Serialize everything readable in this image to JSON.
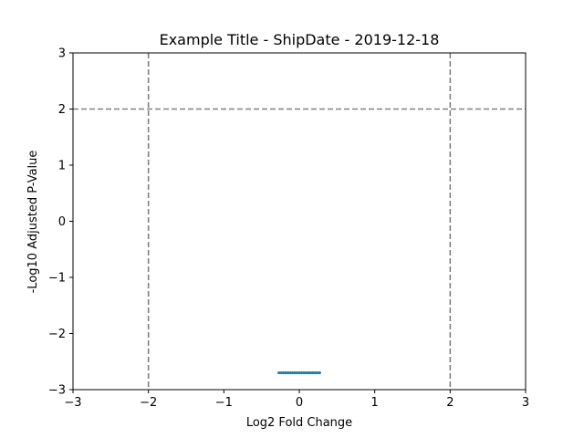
{
  "chart_data": {
    "type": "scatter",
    "title": "Example Title - ShipDate - 2019-12-18",
    "xlabel": "Log2 Fold Change",
    "ylabel": "-Log10 Adjusted P-Value",
    "xlim": [
      -3,
      3
    ],
    "ylim": [
      -3,
      3
    ],
    "xticks": [
      -3,
      -2,
      -1,
      0,
      1,
      2,
      3
    ],
    "yticks": [
      -3,
      -2,
      -1,
      0,
      1,
      2,
      3
    ],
    "xtick_labels": [
      "−3",
      "−2",
      "−1",
      "0",
      "1",
      "2",
      "3"
    ],
    "ytick_labels": [
      "−3",
      "−2",
      "−1",
      "0",
      "1",
      "2",
      "3"
    ],
    "grid": false,
    "threshold_lines": {
      "vertical": [
        -2,
        2
      ],
      "horizontal": [
        2
      ],
      "color": "#808080",
      "style": "dashed"
    },
    "series": [
      {
        "color": "#1f77b4",
        "points": [
          {
            "x": -0.27,
            "y": -2.7
          },
          {
            "x": -0.24,
            "y": -2.7
          },
          {
            "x": -0.21,
            "y": -2.7
          },
          {
            "x": -0.18,
            "y": -2.7
          },
          {
            "x": -0.15,
            "y": -2.7
          },
          {
            "x": -0.12,
            "y": -2.7
          },
          {
            "x": -0.09,
            "y": -2.7
          },
          {
            "x": -0.06,
            "y": -2.7
          },
          {
            "x": -0.03,
            "y": -2.7
          },
          {
            "x": 0.0,
            "y": -2.7
          },
          {
            "x": 0.03,
            "y": -2.7
          },
          {
            "x": 0.06,
            "y": -2.7
          },
          {
            "x": 0.09,
            "y": -2.7
          },
          {
            "x": 0.12,
            "y": -2.7
          },
          {
            "x": 0.15,
            "y": -2.7
          },
          {
            "x": 0.18,
            "y": -2.7
          },
          {
            "x": 0.21,
            "y": -2.7
          },
          {
            "x": 0.24,
            "y": -2.7
          },
          {
            "x": 0.27,
            "y": -2.7
          }
        ]
      }
    ]
  }
}
